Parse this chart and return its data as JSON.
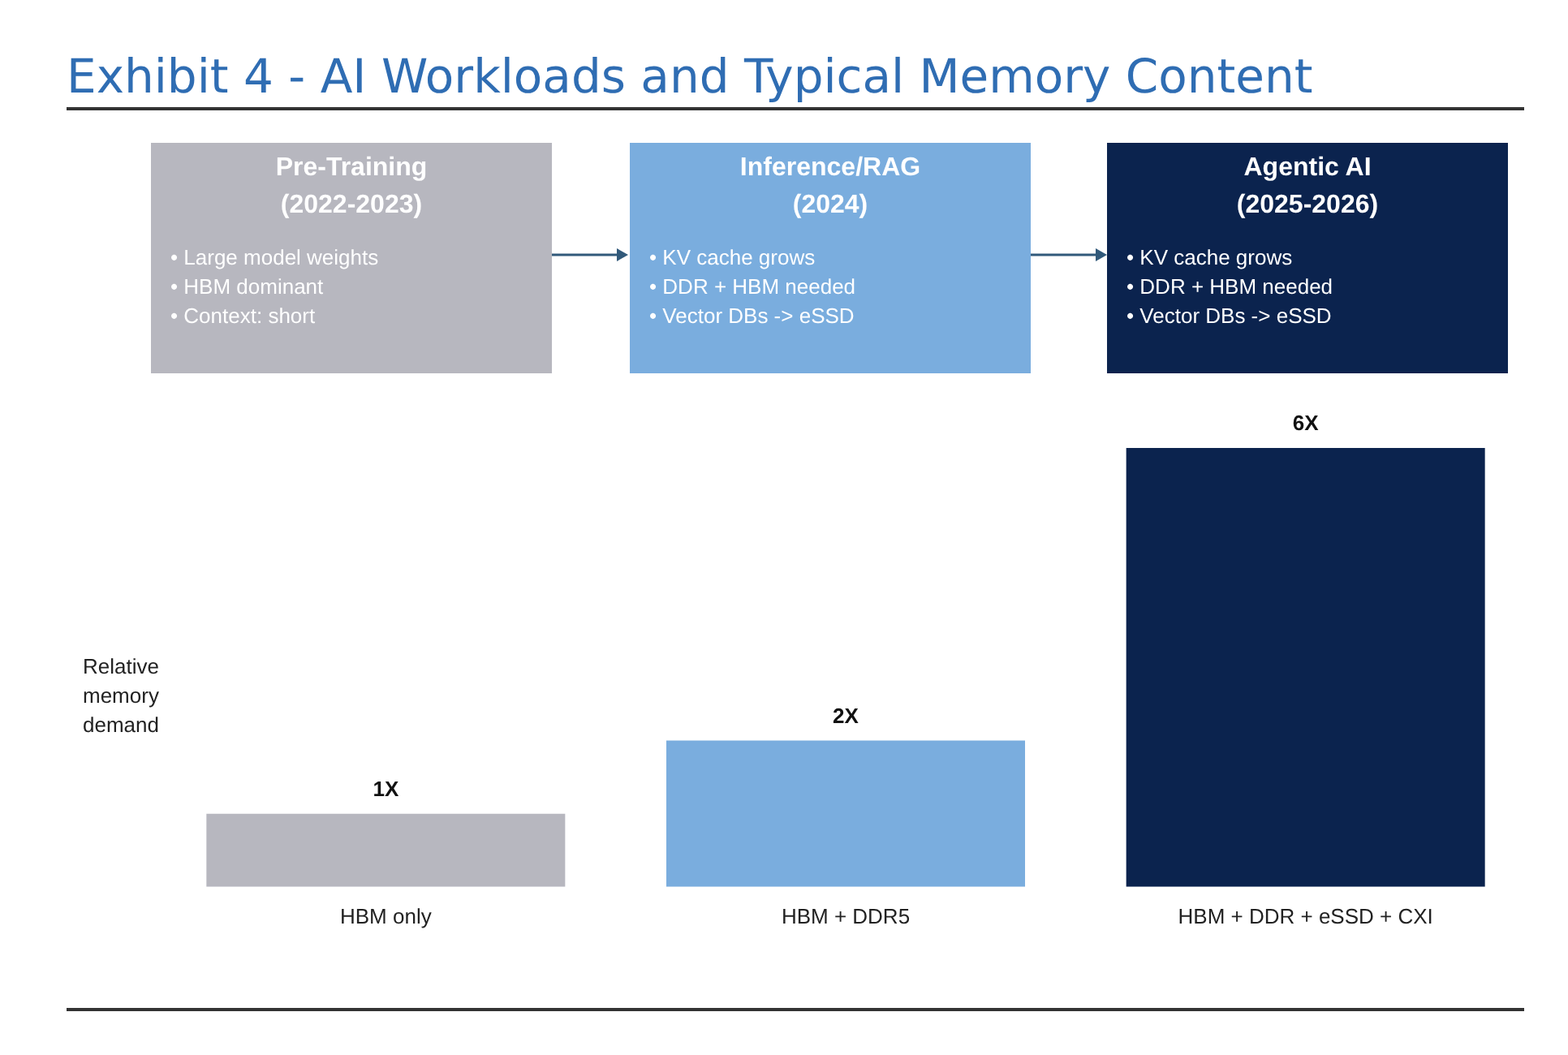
{
  "chart_data": {
    "type": "bar",
    "title": "Exhibit 4 - AI Workloads and Typical Memory Content",
    "ylabel": "Relative memory demand",
    "categories": [
      "HBM only",
      "HBM + DDR5",
      "HBM + DDR + eSSD + CXI"
    ],
    "values": [
      1,
      2,
      6
    ],
    "value_labels": [
      "1X",
      "2X",
      "6X"
    ],
    "colors": [
      "#b7b7bf",
      "#7aadde",
      "#0b234e"
    ],
    "annotations": [
      "Pre-Training\n(2022-2023)",
      "• Large model weights\n• HBM dominant\n• Context: short",
      "Inference/RAG\n(2024)",
      "• KV cache grows\n• DDR + HBM needed\n• Vector DBs -> eSSD",
      "Agentic AI\n(2025-2026)",
      "• KV cache grows\n• DDR + HBM needed\n• Vector DBs -> eSSD"
    ]
  }
}
